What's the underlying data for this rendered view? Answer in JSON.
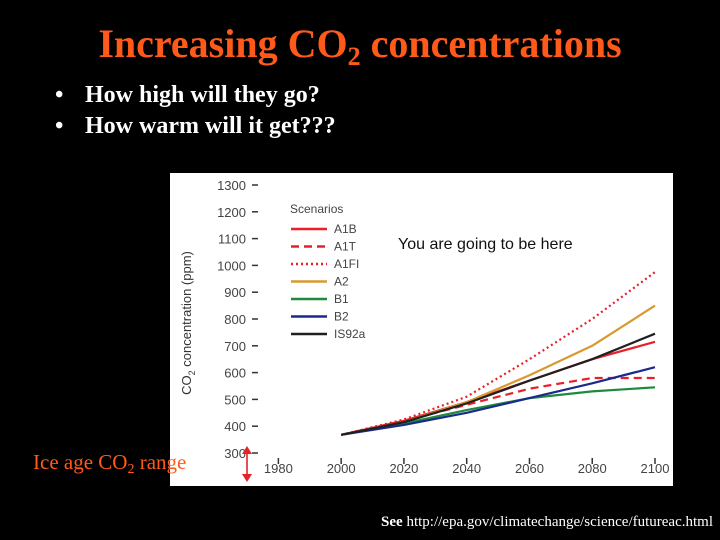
{
  "slide": {
    "title_prefix": "Increasing CO",
    "title_sub": "2",
    "title_suffix": " concentrations",
    "bullets": [
      "How high will they go?",
      "How warm will it get???"
    ],
    "ice_prefix": "Ice age CO",
    "ice_sub": "2",
    "ice_suffix": " range",
    "see_label": "See",
    "see_url": "http://epa.gov/climatechange/science/futureac.html",
    "colors": {
      "title": "#ff5a1a",
      "background": "#000000",
      "text": "#ffffff"
    }
  },
  "chart_data": {
    "type": "line",
    "ylabel_prefix": "CO",
    "ylabel_sub": "2",
    "ylabel_suffix": " concentration (ppm)",
    "xlim": [
      1970,
      2100
    ],
    "ylim": [
      300,
      1300
    ],
    "xticks": [
      1980,
      2000,
      2020,
      2040,
      2060,
      2080,
      2100
    ],
    "yticks": [
      300,
      400,
      500,
      600,
      700,
      800,
      900,
      1000,
      1100,
      1200,
      1300
    ],
    "legend_title": "Scenarios",
    "legend_position": "top-left",
    "annotation": "You are going to be here",
    "x": [
      2000,
      2020,
      2040,
      2060,
      2080,
      2100
    ],
    "series": [
      {
        "name": "A1B",
        "color": "#e8202a",
        "dash": "solid",
        "values": [
          368,
          420,
          490,
          570,
          650,
          715
        ]
      },
      {
        "name": "A1T",
        "color": "#e8202a",
        "dash": "dashed",
        "values": [
          368,
          420,
          480,
          540,
          580,
          580
        ]
      },
      {
        "name": "A1FI",
        "color": "#e8202a",
        "dash": "dotted",
        "values": [
          368,
          425,
          510,
          650,
          800,
          975
        ]
      },
      {
        "name": "A2",
        "color": "#d89a2e",
        "dash": "solid",
        "values": [
          368,
          415,
          490,
          590,
          700,
          850
        ]
      },
      {
        "name": "B1",
        "color": "#1e8a3a",
        "dash": "solid",
        "values": [
          368,
          410,
          460,
          505,
          530,
          545
        ]
      },
      {
        "name": "B2",
        "color": "#1a2a8a",
        "dash": "solid",
        "values": [
          368,
          405,
          450,
          505,
          560,
          620
        ]
      },
      {
        "name": "IS92a",
        "color": "#202020",
        "dash": "solid",
        "values": [
          368,
          415,
          485,
          570,
          650,
          745
        ]
      }
    ]
  }
}
